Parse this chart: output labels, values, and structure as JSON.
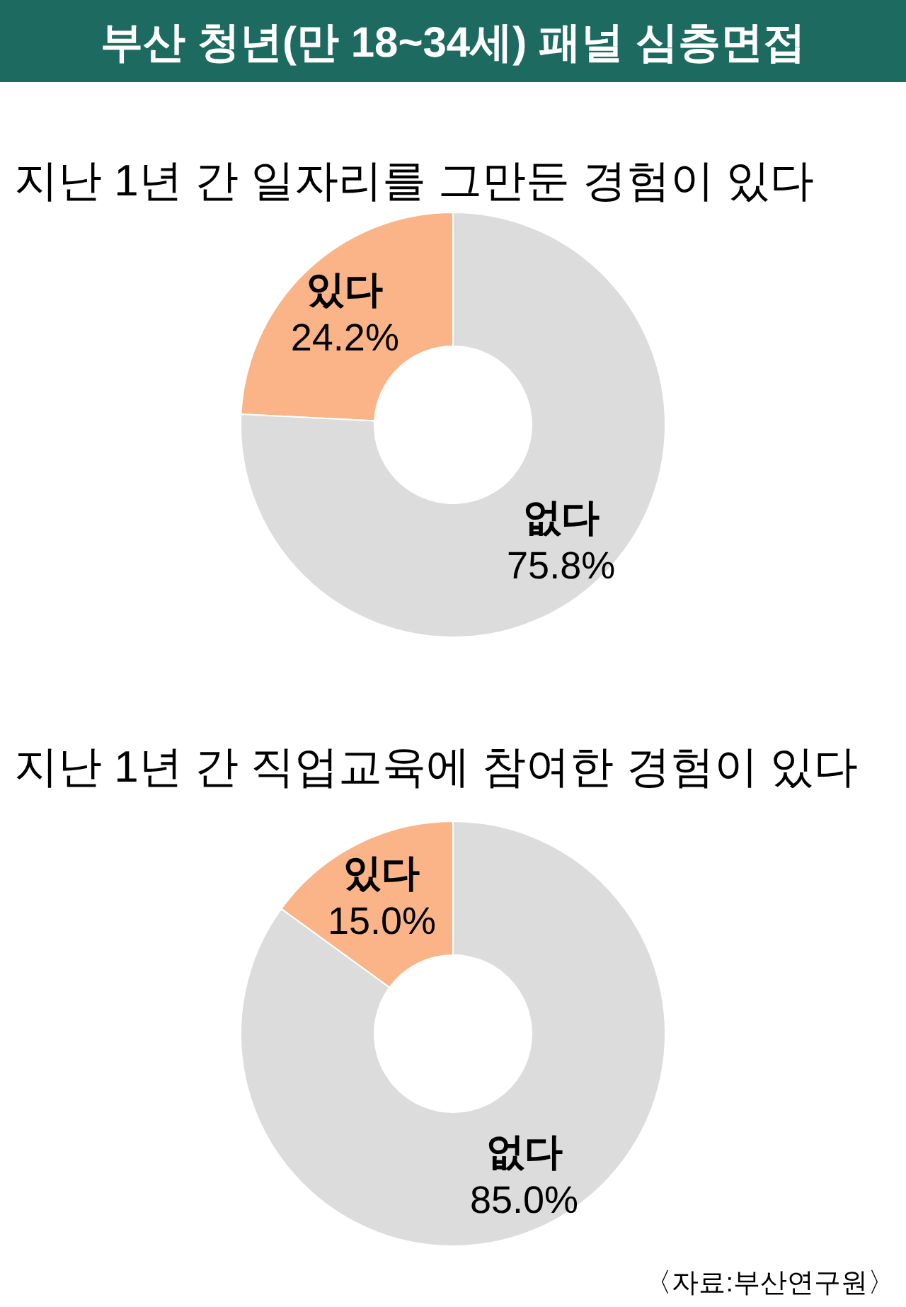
{
  "chart_data": [
    {
      "type": "donut",
      "title": "부산 청년(만 18~34세) 패널 심층면접",
      "subtitle": "지난 1년 간 일자리를 그만둔 경험이 있다",
      "categories": [
        "있다",
        "없다"
      ],
      "values": [
        24.2,
        75.8
      ],
      "value_labels": [
        "24.2%",
        "75.8%"
      ],
      "colors": [
        "#fbb487",
        "#dcdcdc"
      ]
    },
    {
      "type": "donut",
      "title": "지난 1년 간 직업교육에 참여한 경험이 있다",
      "categories": [
        "있다",
        "없다"
      ],
      "values": [
        15.0,
        85.0
      ],
      "value_labels": [
        "15.0%",
        "85.0%"
      ],
      "colors": [
        "#fbb487",
        "#dcdcdc"
      ],
      "annotations": [
        "〈자료:부산연구원〉"
      ]
    }
  ]
}
